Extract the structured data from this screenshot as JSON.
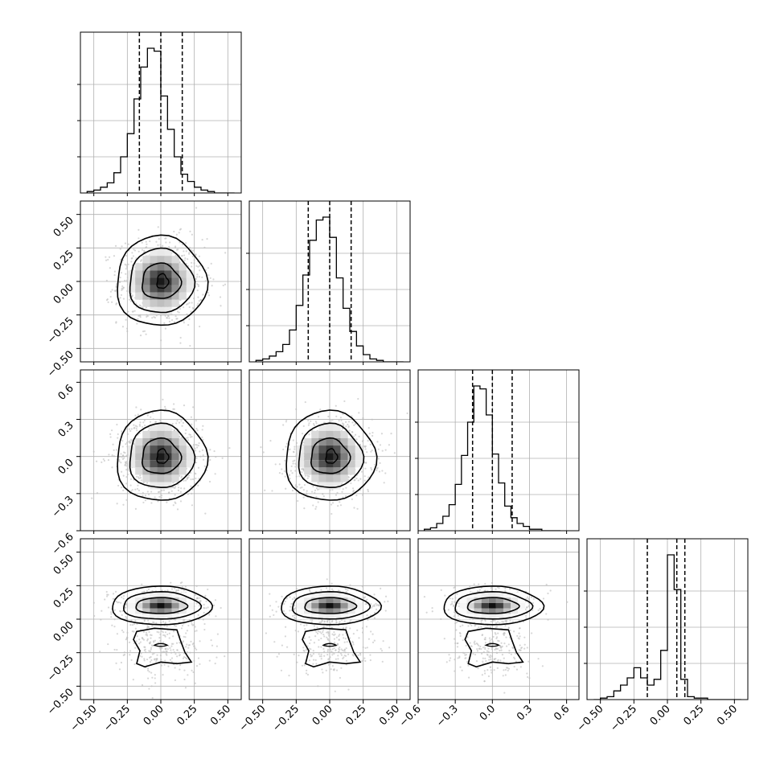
{
  "chart_data": {
    "type": "corner",
    "n_params": 4,
    "grid": true,
    "axis_labels": [],
    "axis_ranges": [
      [
        -0.6,
        0.6
      ],
      [
        -0.6,
        0.6
      ],
      [
        -0.6,
        0.7
      ],
      [
        -0.6,
        0.6
      ]
    ],
    "ticks": [
      {
        "values": [
          -0.5,
          -0.25,
          0.0,
          0.25,
          0.5
        ],
        "labels": [
          "−0.50",
          "−0.25",
          "0.00",
          "0.25",
          "0.50"
        ]
      },
      {
        "values": [
          -0.5,
          -0.25,
          0.0,
          0.25,
          0.5
        ],
        "labels": [
          "−0.50",
          "−0.25",
          "0.00",
          "0.25",
          "0.50"
        ]
      },
      {
        "values": [
          -0.6,
          -0.3,
          0.0,
          0.3,
          0.6
        ],
        "labels": [
          "−0.6",
          "−0.3",
          "0.0",
          "0.3",
          "0.6"
        ]
      },
      {
        "values": [
          -0.5,
          -0.25,
          0.0,
          0.25,
          0.5
        ],
        "labels": [
          "−0.50",
          "−0.25",
          "0.00",
          "0.25",
          "0.50"
        ]
      }
    ],
    "quantiles": [
      [
        -0.16,
        0.0,
        0.16
      ],
      [
        -0.16,
        0.0,
        0.16
      ],
      [
        -0.16,
        0.0,
        0.16
      ],
      [
        -0.15,
        0.07,
        0.13
      ]
    ],
    "histograms": [
      {
        "bin_edges_start": -0.55,
        "bin_width": 0.05,
        "counts": [
          1,
          2,
          4,
          7,
          14,
          25,
          41,
          65,
          87,
          100,
          98,
          67,
          44,
          25,
          13,
          8,
          4,
          2,
          1,
          0,
          0,
          0
        ]
      },
      {
        "bin_edges_start": -0.55,
        "bin_width": 0.05,
        "counts": [
          1,
          2,
          4,
          7,
          12,
          22,
          39,
          60,
          84,
          98,
          100,
          86,
          58,
          37,
          21,
          11,
          5,
          2,
          1,
          0,
          0,
          0
        ]
      },
      {
        "bin_edges_start": -0.55,
        "bin_width": 0.05,
        "counts": [
          1,
          2,
          5,
          10,
          18,
          32,
          52,
          75,
          100,
          98,
          80,
          53,
          33,
          17,
          9,
          5,
          3,
          1,
          1,
          0,
          0,
          0
        ]
      },
      {
        "bin_edges_start": -0.55,
        "bin_width": 0.05,
        "counts": [
          0,
          1,
          2,
          6,
          10,
          15,
          22,
          15,
          10,
          14,
          34,
          100,
          76,
          14,
          2,
          1,
          1,
          0,
          0,
          0,
          0,
          0
        ]
      }
    ]
  }
}
